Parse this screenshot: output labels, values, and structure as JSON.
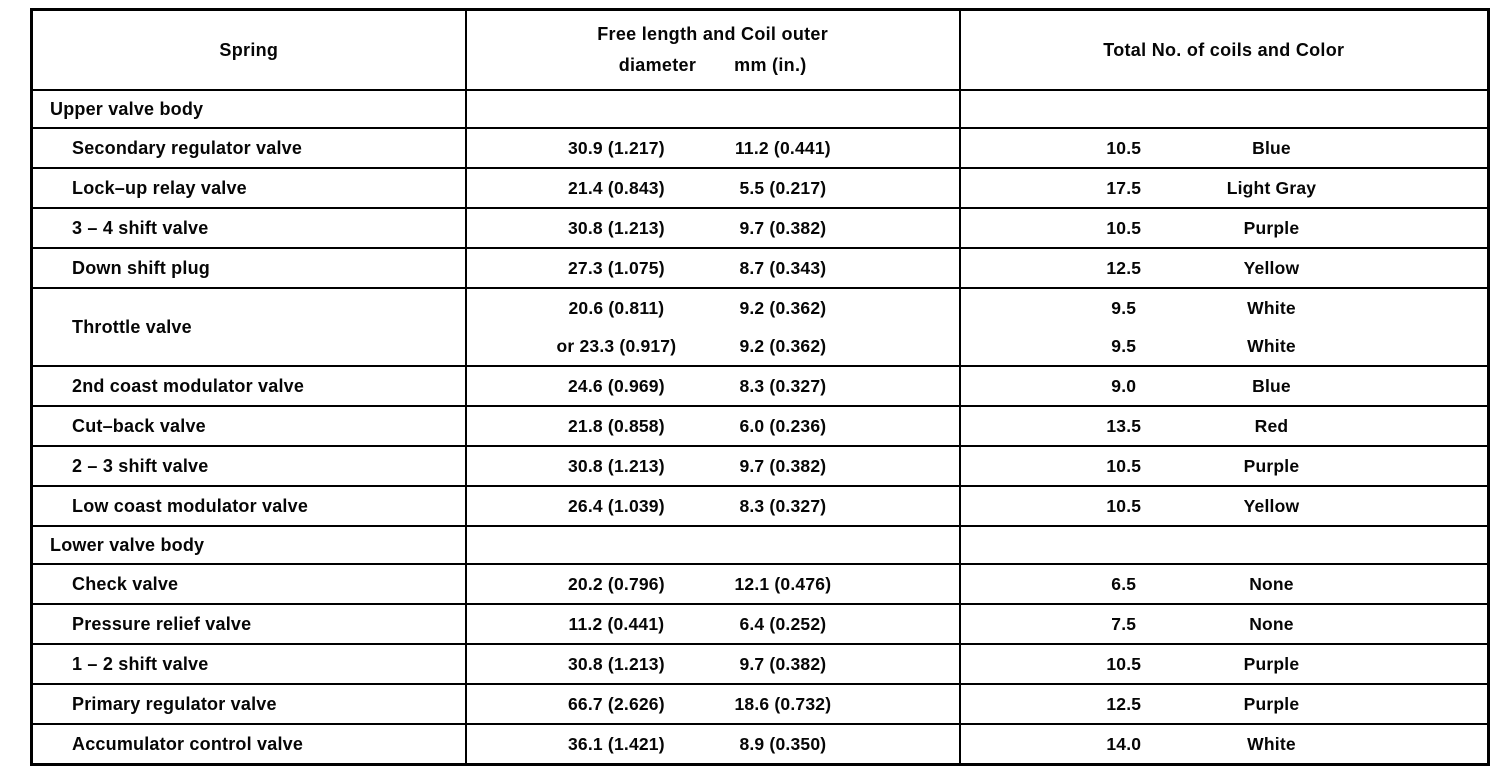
{
  "page": {
    "background_color": "#ffffff",
    "ink_color": "#000000",
    "description": "Scanned service-manual specification table for valve body springs"
  },
  "table": {
    "header": {
      "col1": "Spring",
      "col2_line1": "Free length and Coil outer",
      "col2_line2a": "diameter",
      "col2_line2b": "mm (in.)",
      "col3": "Total No. of coils and Color"
    },
    "rows": [
      {
        "type": "section",
        "label": "Upper valve body"
      },
      {
        "type": "item",
        "label": "Secondary regulator valve",
        "lines": [
          {
            "free": "30.9 (1.217)",
            "dia": "11.2 (0.441)",
            "coils": "10.5",
            "color": "Blue"
          }
        ]
      },
      {
        "type": "item",
        "label": "Lock–up relay valve",
        "lines": [
          {
            "free": "21.4 (0.843)",
            "dia": "5.5 (0.217)",
            "coils": "17.5",
            "color": "Light Gray"
          }
        ]
      },
      {
        "type": "item",
        "label": "3 – 4 shift valve",
        "lines": [
          {
            "free": "30.8 (1.213)",
            "dia": "9.7 (0.382)",
            "coils": "10.5",
            "color": "Purple"
          }
        ]
      },
      {
        "type": "item",
        "label": "Down shift plug",
        "lines": [
          {
            "free": "27.3 (1.075)",
            "dia": "8.7 (0.343)",
            "coils": "12.5",
            "color": "Yellow"
          }
        ]
      },
      {
        "type": "item",
        "label": "Throttle valve",
        "lines": [
          {
            "free": "20.6 (0.811)",
            "dia": "9.2 (0.362)",
            "coils": "9.5",
            "color": "White"
          },
          {
            "free": "or 23.3 (0.917)",
            "dia": "9.2 (0.362)",
            "coils": "9.5",
            "color": "White"
          }
        ]
      },
      {
        "type": "item",
        "label": "2nd coast modulator valve",
        "lines": [
          {
            "free": "24.6 (0.969)",
            "dia": "8.3 (0.327)",
            "coils": "9.0",
            "color": "Blue"
          }
        ]
      },
      {
        "type": "item",
        "label": "Cut–back valve",
        "lines": [
          {
            "free": "21.8 (0.858)",
            "dia": "6.0 (0.236)",
            "coils": "13.5",
            "color": "Red"
          }
        ]
      },
      {
        "type": "item",
        "label": "2 – 3 shift valve",
        "lines": [
          {
            "free": "30.8 (1.213)",
            "dia": "9.7 (0.382)",
            "coils": "10.5",
            "color": "Purple"
          }
        ]
      },
      {
        "type": "item",
        "label": "Low coast modulator valve",
        "lines": [
          {
            "free": "26.4 (1.039)",
            "dia": "8.3 (0.327)",
            "coils": "10.5",
            "color": "Yellow"
          }
        ]
      },
      {
        "type": "section",
        "label": "Lower valve body"
      },
      {
        "type": "item",
        "label": "Check valve",
        "lines": [
          {
            "free": "20.2 (0.796)",
            "dia": "12.1 (0.476)",
            "coils": "6.5",
            "color": "None"
          }
        ]
      },
      {
        "type": "item",
        "label": "Pressure relief valve",
        "lines": [
          {
            "free": "11.2 (0.441)",
            "dia": "6.4 (0.252)",
            "coils": "7.5",
            "color": "None"
          }
        ]
      },
      {
        "type": "item",
        "label": "1 – 2 shift valve",
        "lines": [
          {
            "free": "30.8 (1.213)",
            "dia": "9.7 (0.382)",
            "coils": "10.5",
            "color": "Purple"
          }
        ]
      },
      {
        "type": "item",
        "label": "Primary regulator valve",
        "lines": [
          {
            "free": "66.7 (2.626)",
            "dia": "18.6 (0.732)",
            "coils": "12.5",
            "color": "Purple"
          }
        ]
      },
      {
        "type": "item",
        "label": "Accumulator control valve",
        "lines": [
          {
            "free": "36.1 (1.421)",
            "dia": "8.9 (0.350)",
            "coils": "14.0",
            "color": "White"
          }
        ]
      }
    ]
  }
}
